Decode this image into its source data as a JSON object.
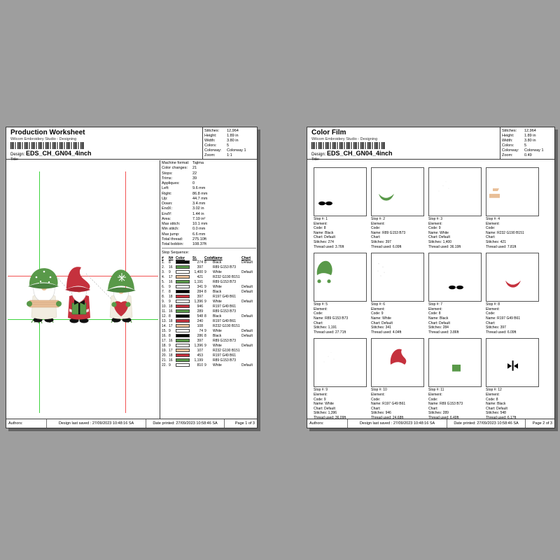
{
  "colors": {
    "green": "#599949",
    "red": "#C5313D",
    "tan": "#E8BE97",
    "black": "#000000",
    "white": "#FFFFFF",
    "guide_green": "#3ed43e",
    "guide_red": "#f25353",
    "desktop_background": "#9e9e9e"
  },
  "shared": {
    "subtitle": "Wilcom Embroidery Studio - Designing",
    "design_label": "Design:",
    "design_name": "EDS_CH_GN04_4inch",
    "title_label": "Title:",
    "authors": "Authors:",
    "saved": "Design last saved : 27/09/2023 10:48:16 SA",
    "printed": "Date printed: 27/09/2023 10:58:46 SA"
  },
  "worksheet": {
    "title": "Production Worksheet",
    "info": [
      [
        "Stitches:",
        "12,964"
      ],
      [
        "Height:",
        "1.89 in"
      ],
      [
        "Width:",
        "3.80 in"
      ],
      [
        "Colors:",
        "5"
      ],
      [
        "Colorway:",
        "Colorway 1"
      ],
      [
        "Zoom:",
        "1:1"
      ]
    ],
    "stats": [
      [
        "Machine format:",
        "Tajima"
      ],
      [
        "Color changes:",
        "21"
      ],
      [
        "Stops:",
        "22"
      ],
      [
        "Trims:",
        "39"
      ],
      [
        "Appliques:",
        "0"
      ],
      [
        "Left:",
        "9.6 mm"
      ],
      [
        "Right:",
        "86.8 mm"
      ],
      [
        "Up:",
        "44.7 mm"
      ],
      [
        "Down:",
        "3.4 mm"
      ],
      [
        "EndX:",
        "3.02 in"
      ],
      [
        "EndY:",
        "1.44 in"
      ],
      [
        "Area:",
        "7.19 in²"
      ],
      [
        "Max stitch:",
        "10.1 mm"
      ],
      [
        "Min stitch:",
        "0.0 mm"
      ],
      [
        "Max jump:",
        "6.6 mm"
      ],
      [
        "Total thread:",
        "275.10ft"
      ],
      [
        "Total bobbin:",
        "108.37ft"
      ]
    ],
    "stop_sequence_label": "Stop Sequence:",
    "table": {
      "headers": [
        "#",
        "N#",
        "Color",
        "St.",
        "Code",
        "Name",
        "Chart"
      ],
      "rows": [
        [
          "1.",
          "8",
          "black",
          "274",
          "8",
          "Black",
          "Default"
        ],
        [
          "2.",
          "16",
          "green",
          "397",
          "",
          "R89 G153 B73",
          ""
        ],
        [
          "3.",
          "9",
          "white",
          "1,400",
          "9",
          "White",
          "Default"
        ],
        [
          "4.",
          "17",
          "tan",
          "421",
          "",
          "R232 G190 B151",
          ""
        ],
        [
          "5.",
          "16",
          "green",
          "1,191",
          "",
          "R89 G153 B73",
          ""
        ],
        [
          "6.",
          "9",
          "white",
          "341",
          "9",
          "White",
          "Default"
        ],
        [
          "7.",
          "8",
          "black",
          "284",
          "8",
          "Black",
          "Default"
        ],
        [
          "8.",
          "18",
          "red",
          "397",
          "",
          "R197 G49 B61",
          ""
        ],
        [
          "9.",
          "9",
          "white",
          "1,396",
          "9",
          "White",
          "Default"
        ],
        [
          "10.",
          "18",
          "red",
          "946",
          "",
          "R197 G49 B61",
          ""
        ],
        [
          "11.",
          "16",
          "green",
          "289",
          "",
          "R89 G153 B73",
          ""
        ],
        [
          "12.",
          "8",
          "black",
          "548",
          "8",
          "Black",
          "Default"
        ],
        [
          "13.",
          "18",
          "red",
          "240",
          "",
          "R197 G49 B61",
          ""
        ],
        [
          "14.",
          "17",
          "tan",
          "108",
          "",
          "R232 G190 B151",
          ""
        ],
        [
          "15.",
          "9",
          "white",
          "74",
          "9",
          "White",
          "Default"
        ],
        [
          "16.",
          "8",
          "black",
          "286",
          "8",
          "Black",
          "Default"
        ],
        [
          "17.",
          "16",
          "green",
          "397",
          "",
          "R89 G153 B73",
          ""
        ],
        [
          "18.",
          "9",
          "white",
          "1,396",
          "9",
          "White",
          "Default"
        ],
        [
          "19.",
          "17",
          "tan",
          "107",
          "",
          "R232 G190 B151",
          ""
        ],
        [
          "20.",
          "18",
          "red",
          "453",
          "",
          "R197 G49 B61",
          ""
        ],
        [
          "21.",
          "16",
          "green",
          "1,199",
          "",
          "R89 G153 B73",
          ""
        ],
        [
          "22.",
          "9",
          "white",
          "810",
          "9",
          "White",
          "Default"
        ]
      ]
    },
    "page_label": "Page 1 of 3"
  },
  "film": {
    "title": "Color Film",
    "info": [
      [
        "Stitches:",
        "12,964"
      ],
      [
        "Height:",
        "1.89 in"
      ],
      [
        "Width:",
        "3.80 in"
      ],
      [
        "Colors:",
        "5"
      ],
      [
        "Colorway:",
        "Colorway 1"
      ],
      [
        "Zoom:",
        "0.49"
      ]
    ],
    "stop_labels": {
      "stop": "Stop #:",
      "element": "Element:",
      "code": "Code:",
      "name": "Name:",
      "chart": "Chart:",
      "stitches": "Stitches:",
      "thread": "Thread used:"
    },
    "stops": [
      {
        "stop": "1",
        "code": "8",
        "name": "Black",
        "chart": "Default",
        "stitches": "274",
        "thread": "3.76ft",
        "thumb": "boots-bottom-left"
      },
      {
        "stop": "2",
        "code": "",
        "name": "R89 G153 B73",
        "chart": "",
        "stitches": "397",
        "thread": "6.09ft",
        "thumb": "green-brim"
      },
      {
        "stop": "3",
        "code": "9",
        "name": "White",
        "chart": "Default",
        "stitches": "1,400",
        "thread": "36.19ft",
        "thumb": "white-faint"
      },
      {
        "stop": "4",
        "code": "",
        "name": "R232 G190 B151",
        "chart": "",
        "stitches": "421",
        "thread": "7.81ft",
        "thumb": "tan-pieces"
      },
      {
        "stop": "5",
        "code": "",
        "name": "R89 G153 B73",
        "chart": "",
        "stitches": "1,191",
        "thread": "27.71ft",
        "thumb": "green-hat"
      },
      {
        "stop": "6",
        "code": "9",
        "name": "White",
        "chart": "Default",
        "stitches": "341",
        "thread": "4.04ft",
        "thumb": "white-speckles"
      },
      {
        "stop": "7",
        "code": "8",
        "name": "Black",
        "chart": "Default",
        "stitches": "284",
        "thread": "3.86ft",
        "thumb": "boots-center"
      },
      {
        "stop": "8",
        "code": "",
        "name": "R197 G49 B61",
        "chart": "",
        "stitches": "397",
        "thread": "6.09ft",
        "thumb": "red-brim"
      },
      {
        "stop": "9",
        "code": "9",
        "name": "White",
        "chart": "Default",
        "stitches": "1,396",
        "thread": "36.09ft",
        "thumb": "white-faint"
      },
      {
        "stop": "10",
        "code": "",
        "name": "R197 G49 B61",
        "chart": "",
        "stitches": "946",
        "thread": "24.68ft",
        "thumb": "red-hat"
      },
      {
        "stop": "11",
        "code": "",
        "name": "R89 G153 B73",
        "chart": "",
        "stitches": "289",
        "thread": "6.49ft",
        "thumb": "green-square"
      },
      {
        "stop": "12",
        "code": "8",
        "name": "Black",
        "chart": "Default",
        "stitches": "548",
        "thread": "6.17ft",
        "thumb": "black-bow"
      }
    ],
    "page_label": "Page 2 of 3"
  }
}
